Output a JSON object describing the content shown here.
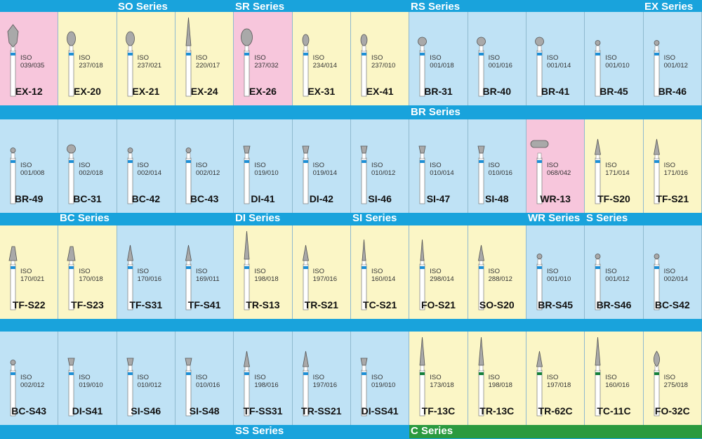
{
  "colors": {
    "pink": "#f7c6dc",
    "yellow": "#fbf6c6",
    "blue": "#bfe2f5",
    "band": "#19a3dc",
    "green_band": "#2b9a3f",
    "blue_ring": "#1e8fd5",
    "green_ring": "#15803a",
    "shank": "#ffffff",
    "head": "#a9a9a9"
  },
  "bands": [
    {
      "labels": [
        {
          "text": "SO Series"
        },
        {
          "text": "SR Series"
        },
        {
          "text": "RS Series"
        },
        {
          "text": "EX Series"
        }
      ]
    },
    {
      "labels": [
        {
          "text": "BR Series"
        }
      ]
    },
    {
      "labels": [
        {
          "text": "BC Series"
        },
        {
          "text": "DI Series"
        },
        {
          "text": "SI Series"
        },
        {
          "text": "WR Series"
        },
        {
          "text": "S Series"
        }
      ]
    },
    {
      "labels": []
    },
    {
      "labels": [
        {
          "text": "SS Series"
        },
        {
          "text": "C Series",
          "color": "green"
        }
      ]
    }
  ],
  "rows": [
    {
      "cells": [
        {
          "code": "EX-12",
          "iso_label": "ISO",
          "iso": "039/035",
          "bg": "pink",
          "shape": "hexagon",
          "ring": "blue"
        },
        {
          "code": "EX-20",
          "iso_label": "ISO",
          "iso": "237/018",
          "bg": "yellow",
          "shape": "pear",
          "ring": "blue"
        },
        {
          "code": "EX-21",
          "iso_label": "ISO",
          "iso": "237/021",
          "bg": "yellow",
          "shape": "pear",
          "ring": "blue"
        },
        {
          "code": "EX-24",
          "iso_label": "ISO",
          "iso": "220/017",
          "bg": "yellow",
          "shape": "long-taper",
          "ring": "blue"
        },
        {
          "code": "EX-26",
          "iso_label": "ISO",
          "iso": "237/032",
          "bg": "pink",
          "shape": "big-pear",
          "ring": "blue"
        },
        {
          "code": "EX-31",
          "iso_label": "ISO",
          "iso": "234/014",
          "bg": "yellow",
          "shape": "small-pear",
          "ring": "blue"
        },
        {
          "code": "EX-41",
          "iso_label": "ISO",
          "iso": "237/010",
          "bg": "yellow",
          "shape": "small-pear",
          "ring": "blue"
        },
        {
          "code": "BR-31",
          "iso_label": "ISO",
          "iso": "001/018",
          "bg": "blue",
          "shape": "ball",
          "ring": "blue"
        },
        {
          "code": "BR-40",
          "iso_label": "ISO",
          "iso": "001/016",
          "bg": "blue",
          "shape": "ball",
          "ring": "blue"
        },
        {
          "code": "BR-41",
          "iso_label": "ISO",
          "iso": "001/014",
          "bg": "blue",
          "shape": "ball",
          "ring": "blue"
        },
        {
          "code": "BR-45",
          "iso_label": "ISO",
          "iso": "001/010",
          "bg": "blue",
          "shape": "small-ball",
          "ring": "blue"
        },
        {
          "code": "BR-46",
          "iso_label": "ISO",
          "iso": "001/012",
          "bg": "blue",
          "shape": "small-ball",
          "ring": "blue"
        }
      ]
    },
    {
      "cells": [
        {
          "code": "BR-49",
          "iso_label": "ISO",
          "iso": "001/008",
          "bg": "blue",
          "shape": "small-ball",
          "ring": "blue"
        },
        {
          "code": "BC-31",
          "iso_label": "ISO",
          "iso": "002/018",
          "bg": "blue",
          "shape": "ball",
          "ring": "blue"
        },
        {
          "code": "BC-42",
          "iso_label": "ISO",
          "iso": "002/014",
          "bg": "blue",
          "shape": "small-ball",
          "ring": "blue"
        },
        {
          "code": "BC-43",
          "iso_label": "ISO",
          "iso": "002/012",
          "bg": "blue",
          "shape": "small-ball",
          "ring": "blue"
        },
        {
          "code": "DI-41",
          "iso_label": "ISO",
          "iso": "019/010",
          "bg": "blue",
          "shape": "inverted",
          "ring": "blue"
        },
        {
          "code": "DI-42",
          "iso_label": "ISO",
          "iso": "019/014",
          "bg": "blue",
          "shape": "inverted",
          "ring": "blue"
        },
        {
          "code": "SI-46",
          "iso_label": "ISO",
          "iso": "010/012",
          "bg": "blue",
          "shape": "inverted",
          "ring": "blue"
        },
        {
          "code": "SI-47",
          "iso_label": "ISO",
          "iso": "010/014",
          "bg": "blue",
          "shape": "inverted",
          "ring": "blue"
        },
        {
          "code": "SI-48",
          "iso_label": "ISO",
          "iso": "010/016",
          "bg": "blue",
          "shape": "inverted",
          "ring": "blue"
        },
        {
          "code": "WR-13",
          "iso_label": "ISO",
          "iso": "068/042",
          "bg": "pink",
          "shape": "wheel",
          "ring": "blue"
        },
        {
          "code": "TF-S20",
          "iso_label": "ISO",
          "iso": "171/014",
          "bg": "yellow",
          "shape": "taper",
          "ring": "blue"
        },
        {
          "code": "TF-S21",
          "iso_label": "ISO",
          "iso": "171/016",
          "bg": "yellow",
          "shape": "taper",
          "ring": "blue"
        }
      ]
    },
    {
      "cells": [
        {
          "code": "TF-S22",
          "iso_label": "ISO",
          "iso": "170/021",
          "bg": "yellow",
          "shape": "taper-wide",
          "ring": "blue"
        },
        {
          "code": "TF-S23",
          "iso_label": "ISO",
          "iso": "170/018",
          "bg": "yellow",
          "shape": "taper-wide",
          "ring": "blue"
        },
        {
          "code": "TF-S31",
          "iso_label": "ISO",
          "iso": "170/016",
          "bg": "blue",
          "shape": "taper",
          "ring": "blue"
        },
        {
          "code": "TF-S41",
          "iso_label": "ISO",
          "iso": "169/011",
          "bg": "blue",
          "shape": "taper",
          "ring": "blue"
        },
        {
          "code": "TR-S13",
          "iso_label": "ISO",
          "iso": "198/018",
          "bg": "yellow",
          "shape": "long-taper",
          "ring": "blue"
        },
        {
          "code": "TR-S21",
          "iso_label": "ISO",
          "iso": "197/016",
          "bg": "yellow",
          "shape": "taper",
          "ring": "blue"
        },
        {
          "code": "TC-S21",
          "iso_label": "ISO",
          "iso": "160/014",
          "bg": "yellow",
          "shape": "needle",
          "ring": "blue"
        },
        {
          "code": "FO-S21",
          "iso_label": "ISO",
          "iso": "298/014",
          "bg": "yellow",
          "shape": "needle",
          "ring": "blue"
        },
        {
          "code": "SO-S20",
          "iso_label": "ISO",
          "iso": "288/012",
          "bg": "yellow",
          "shape": "taper",
          "ring": "blue"
        },
        {
          "code": "BR-S45",
          "iso_label": "ISO",
          "iso": "001/010",
          "bg": "blue",
          "shape": "small-ball",
          "ring": "blue"
        },
        {
          "code": "BR-S46",
          "iso_label": "ISO",
          "iso": "001/012",
          "bg": "blue",
          "shape": "small-ball",
          "ring": "blue"
        },
        {
          "code": "BC-S42",
          "iso_label": "ISO",
          "iso": "002/014",
          "bg": "blue",
          "shape": "small-ball",
          "ring": "blue"
        }
      ]
    },
    {
      "cells": [
        {
          "code": "BC-S43",
          "iso_label": "ISO",
          "iso": "002/012",
          "bg": "blue",
          "shape": "small-ball",
          "ring": "blue"
        },
        {
          "code": "DI-S41",
          "iso_label": "ISO",
          "iso": "019/010",
          "bg": "blue",
          "shape": "inverted",
          "ring": "blue"
        },
        {
          "code": "SI-S46",
          "iso_label": "ISO",
          "iso": "010/012",
          "bg": "blue",
          "shape": "inverted",
          "ring": "blue"
        },
        {
          "code": "SI-S48",
          "iso_label": "ISO",
          "iso": "010/016",
          "bg": "blue",
          "shape": "inverted",
          "ring": "blue"
        },
        {
          "code": "TF-SS31",
          "iso_label": "ISO",
          "iso": "198/016",
          "bg": "blue",
          "shape": "taper",
          "ring": "blue"
        },
        {
          "code": "TR-SS21",
          "iso_label": "ISO",
          "iso": "197/016",
          "bg": "blue",
          "shape": "taper",
          "ring": "blue"
        },
        {
          "code": "DI-SS41",
          "iso_label": "ISO",
          "iso": "019/010",
          "bg": "blue",
          "shape": "inverted",
          "ring": "blue"
        },
        {
          "code": "TF-13C",
          "iso_label": "ISO",
          "iso": "173/018",
          "bg": "yellow",
          "shape": "long-taper",
          "ring": "green"
        },
        {
          "code": "TR-13C",
          "iso_label": "ISO",
          "iso": "198/018",
          "bg": "yellow",
          "shape": "long-taper",
          "ring": "green"
        },
        {
          "code": "TR-62C",
          "iso_label": "ISO",
          "iso": "197/018",
          "bg": "yellow",
          "shape": "taper",
          "ring": "green"
        },
        {
          "code": "TC-11C",
          "iso_label": "ISO",
          "iso": "160/016",
          "bg": "yellow",
          "shape": "long-taper",
          "ring": "green"
        },
        {
          "code": "FO-32C",
          "iso_label": "ISO",
          "iso": "275/018",
          "bg": "yellow",
          "shape": "flame",
          "ring": "green"
        }
      ]
    }
  ]
}
